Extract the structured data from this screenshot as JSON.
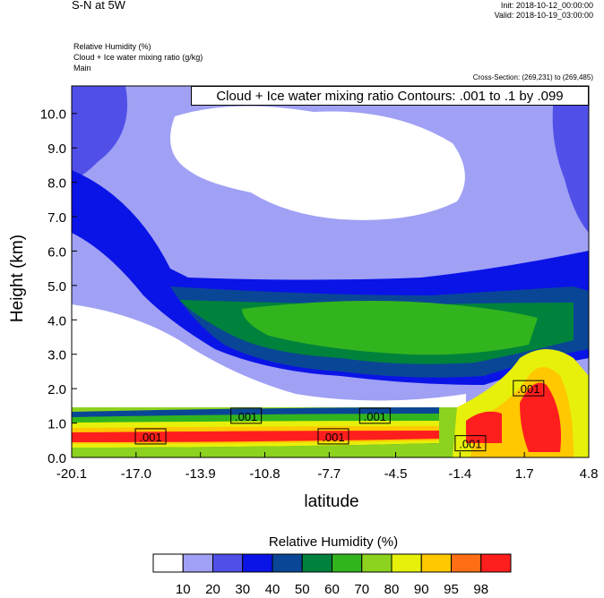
{
  "header": {
    "title": "S-N at 5W",
    "init": "Init: 2018-10-12_00:00:00",
    "valid": "Valid: 2018-10-19_03:00:00",
    "variables": [
      "Relative Humidity   (%)",
      "Cloud + Ice water mixing ratio   (g/kg)",
      "Main"
    ],
    "cross_section": "Cross-Section: (269,231) to (269,485)",
    "contour_label": "Cloud + Ice water mixing ratio Contours: .001 to .1 by .099"
  },
  "chart_data": {
    "type": "heatmap",
    "title": "S-N at 5W",
    "xlabel": "latitude",
    "ylabel": "Height (km)",
    "x_ticks": [
      "-20.1",
      "-17.0",
      "-13.9",
      "-10.8",
      "-7.7",
      "-4.5",
      "-1.4",
      "1.7",
      "4.8"
    ],
    "y_ticks": [
      "0.0",
      "1.0",
      "2.0",
      "3.0",
      "4.0",
      "5.0",
      "6.0",
      "7.0",
      "8.0",
      "9.0",
      "10.0"
    ],
    "xlim": [
      -20.1,
      4.8
    ],
    "ylim": [
      0.0,
      10.8
    ],
    "colorbar": {
      "title": "Relative Humidity  (%)",
      "levels": [
        "10",
        "20",
        "30",
        "40",
        "50",
        "60",
        "70",
        "80",
        "90",
        "95",
        "98"
      ],
      "colors": [
        "#ffffff",
        "#a0a0f5",
        "#5050e8",
        "#0a14e6",
        "#0a4696",
        "#00823c",
        "#32b41e",
        "#8cd21e",
        "#e6f00a",
        "#ffc800",
        "#ff6e14",
        "#ff1e1e"
      ]
    },
    "contour_labels": [
      {
        "text": ".001",
        "x": -16.3,
        "y": 0.6
      },
      {
        "text": ".001",
        "x": -11.7,
        "y": 1.2
      },
      {
        "text": ".001",
        "x": -7.5,
        "y": 0.6
      },
      {
        "text": ".001",
        "x": -5.5,
        "y": 1.2
      },
      {
        "text": ".001",
        "x": -0.9,
        "y": 0.4
      },
      {
        "text": ".001",
        "x": 1.9,
        "y": 2.0
      }
    ]
  }
}
